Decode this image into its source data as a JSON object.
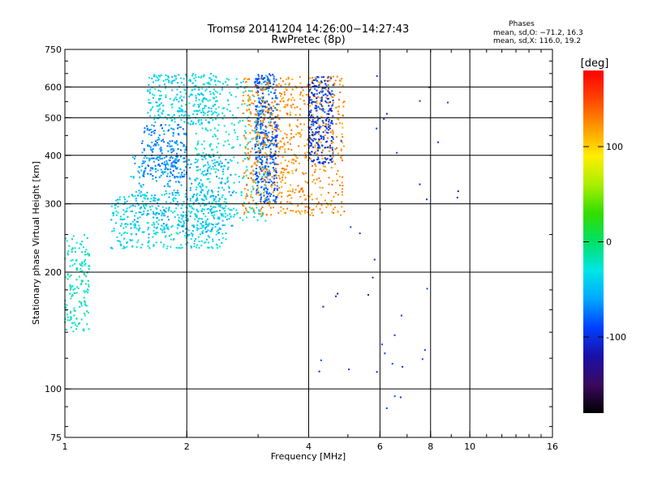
{
  "chart_data": {
    "type": "scatter",
    "title": "Tromsø 20141204 14:26:00−14:27:43",
    "subtitle": "RwPretec (8p)",
    "xlabel": "Frequency [MHz]",
    "ylabel": "Stationary phase Virtual Height [km]",
    "xscale": "log",
    "yscale": "log",
    "xlim": [
      1,
      16
    ],
    "ylim": [
      75,
      750
    ],
    "x_ticks": [
      1,
      2,
      4,
      6,
      8,
      10,
      16
    ],
    "y_ticks": [
      75,
      100,
      200,
      300,
      400,
      500,
      600,
      750
    ],
    "x_gridlines": [
      2,
      4,
      6,
      8,
      10
    ],
    "y_gridlines": [
      100,
      200,
      300,
      400,
      500,
      600
    ],
    "grid": true,
    "stats": {
      "heading": "Phases",
      "line1": "mean, sd,O: −71.2, 16.3",
      "line2": "mean, sd,X: 116.0, 19.2"
    },
    "colorbar": {
      "label": "[deg]",
      "min": -180,
      "max": 180,
      "ticks": [
        -100,
        0,
        100
      ],
      "colors": [
        "#000000",
        "#3b0a5e",
        "#1a10a8",
        "#0040ff",
        "#00a8ff",
        "#00e6e6",
        "#00e066",
        "#33dd00",
        "#aaee00",
        "#ffee00",
        "#ff9900",
        "#ff4400",
        "#ff0000"
      ]
    },
    "clusters": [
      {
        "name": "o-low-trace",
        "color_deg": -20,
        "x": [
          1.0,
          1.15
        ],
        "y": [
          140,
          250
        ],
        "n": 160
      },
      {
        "name": "o-lower-branch",
        "color_deg": -35,
        "x": [
          1.3,
          2.5
        ],
        "y": [
          230,
          320
        ],
        "n": 420
      },
      {
        "name": "o-upper-branch",
        "color_deg": -55,
        "x": [
          1.45,
          2.6
        ],
        "y": [
          250,
          400
        ],
        "n": 300
      },
      {
        "name": "o-top-cloud",
        "color_deg": -40,
        "x": [
          1.6,
          2.4
        ],
        "y": [
          480,
          650
        ],
        "n": 260
      },
      {
        "name": "o-mid-cloud",
        "color_deg": -70,
        "x": [
          1.55,
          2.0
        ],
        "y": [
          350,
          480
        ],
        "n": 220
      },
      {
        "name": "o-diagonal",
        "color_deg": -30,
        "x": [
          2.1,
          3.2
        ],
        "y": [
          270,
          650
        ],
        "n": 360
      },
      {
        "name": "o-column-3mhz",
        "color_deg": -85,
        "x": [
          2.95,
          3.35
        ],
        "y": [
          300,
          650
        ],
        "n": 380
      },
      {
        "name": "x-trace",
        "color_deg": 125,
        "x": [
          2.75,
          4.9
        ],
        "y": [
          280,
          640
        ],
        "n": 700
      },
      {
        "name": "x-dark-trace",
        "color_deg": -95,
        "x": [
          4.0,
          4.6
        ],
        "y": [
          380,
          640
        ],
        "n": 260
      },
      {
        "name": "noise-right",
        "color_deg": -100,
        "x": [
          4.0,
          9.5
        ],
        "y": [
          85,
          660
        ],
        "n": 40
      }
    ]
  }
}
